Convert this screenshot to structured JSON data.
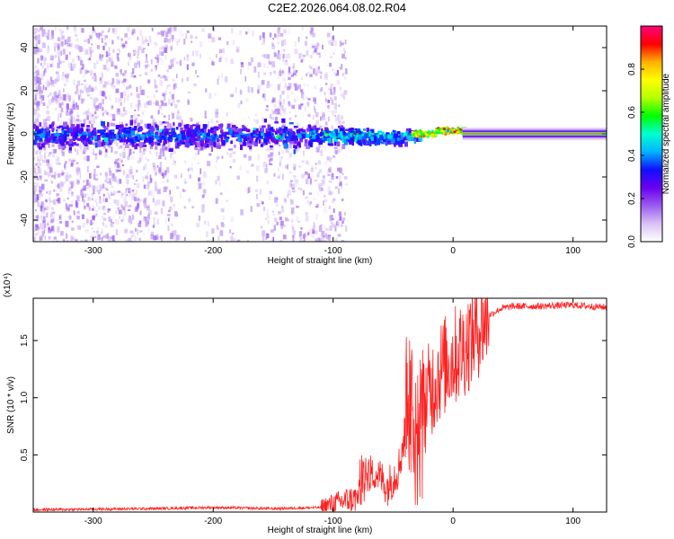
{
  "figure": {
    "title": "C2E2.2026.064.08.02.R04"
  },
  "chart_data": [
    {
      "type": "heatmap",
      "xlabel": "Height of straight line (km)",
      "ylabel": "Frequency (Hz)",
      "xlim": [
        -350,
        128
      ],
      "ylim": [
        -50,
        50
      ],
      "x_ticks": [
        -300,
        -200,
        -100,
        0,
        100
      ],
      "y_ticks": [
        -40,
        -20,
        0,
        20,
        40
      ],
      "colorbar": {
        "label": "Normalized spectral amplitude",
        "range": [
          0,
          1
        ],
        "ticks": [
          "0.0",
          "0.2",
          "0.4",
          "0.6",
          "0.8"
        ],
        "colormap": [
          "#ffffff",
          "#d9c2f5",
          "#9a5cf0",
          "#6a00f0",
          "#1010ff",
          "#00b4ff",
          "#00ffd0",
          "#00ff00",
          "#b4ff00",
          "#ffff00",
          "#ffb000",
          "#ff0000",
          "#ff0080"
        ]
      },
      "description_points": {
        "carrier_frequency_hz": 0,
        "signal_onset_km": -35,
        "noise_fades_km": -110
      },
      "grid": false
    },
    {
      "type": "line",
      "xlabel": "Height of straight line (km)",
      "ylabel": "SNR (10 * v/v)",
      "y_multiplier": "(x10⁴)",
      "xlim": [
        -350,
        128
      ],
      "ylim": [
        0,
        1.87
      ],
      "x_ticks": [
        -300,
        -200,
        -100,
        0,
        100
      ],
      "y_ticks": [
        "0.5",
        "1.0",
        "1.5"
      ],
      "series": [
        {
          "color": "#ff2020",
          "x": [
            -350,
            -250,
            -200,
            -150,
            -110,
            -100,
            -90,
            -80,
            -70,
            -65,
            -60,
            -55,
            -50,
            -45,
            -40,
            -35,
            -30,
            -25,
            -20,
            -15,
            -10,
            -5,
            0,
            10,
            20,
            30,
            40,
            50,
            70,
            100,
            128
          ],
          "y": [
            0.02,
            0.03,
            0.04,
            0.03,
            0.04,
            0.07,
            0.1,
            0.12,
            0.3,
            0.35,
            0.3,
            0.22,
            0.3,
            0.4,
            0.7,
            0.75,
            0.8,
            0.9,
            1.05,
            1.15,
            1.25,
            1.3,
            1.35,
            1.45,
            1.6,
            1.72,
            1.78,
            1.8,
            1.8,
            1.81,
            1.79
          ]
        }
      ],
      "grid": false
    }
  ]
}
